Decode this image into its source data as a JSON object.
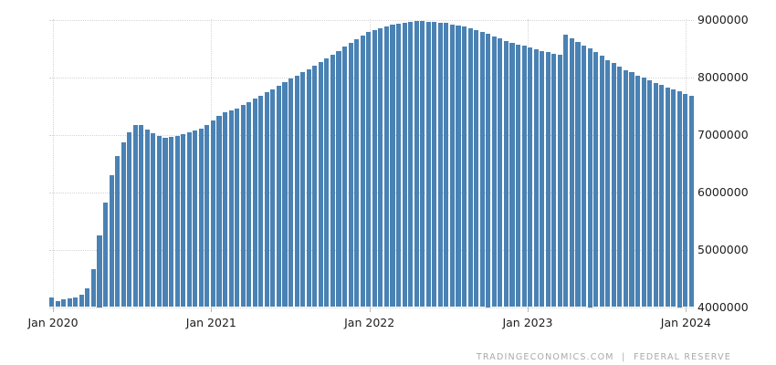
{
  "chart_data": {
    "type": "bar",
    "grid": true,
    "legend": "none",
    "bar_color": "#4a82b4",
    "ylim": [
      4000000,
      9000000
    ],
    "y_ticks": [
      4000000,
      5000000,
      6000000,
      7000000,
      8000000,
      9000000
    ],
    "y_tick_labels": [
      "4000000",
      "5000000",
      "6000000",
      "7000000",
      "8000000",
      "9000000"
    ],
    "x_tick_labels": [
      "Jan 2020",
      "Jan 2021",
      "Jan 2022",
      "Jan 2023",
      "Jan 2024"
    ],
    "values": [
      4170000,
      4110000,
      4140000,
      4150000,
      4160000,
      4220000,
      4320000,
      4660000,
      5250000,
      5810000,
      6290000,
      6630000,
      6860000,
      7040000,
      7160000,
      7170000,
      7090000,
      7020000,
      6970000,
      6940000,
      6960000,
      6980000,
      7010000,
      7040000,
      7070000,
      7100000,
      7160000,
      7240000,
      7330000,
      7390000,
      7420000,
      7460000,
      7510000,
      7570000,
      7620000,
      7680000,
      7740000,
      7790000,
      7850000,
      7910000,
      7970000,
      8030000,
      8080000,
      8140000,
      8200000,
      8260000,
      8330000,
      8390000,
      8460000,
      8530000,
      8600000,
      8660000,
      8720000,
      8780000,
      8820000,
      8850000,
      8880000,
      8910000,
      8930000,
      8950000,
      8960000,
      8970000,
      8970000,
      8960000,
      8960000,
      8950000,
      8940000,
      8920000,
      8900000,
      8880000,
      8850000,
      8820000,
      8790000,
      8750000,
      8710000,
      8670000,
      8630000,
      8600000,
      8570000,
      8540000,
      8510000,
      8480000,
      8450000,
      8430000,
      8410000,
      8390000,
      8740000,
      8680000,
      8610000,
      8550000,
      8500000,
      8440000,
      8370000,
      8300000,
      8240000,
      8180000,
      8120000,
      8080000,
      8030000,
      7990000,
      7950000,
      7900000,
      7860000,
      7820000,
      7780000,
      7750000,
      7710000,
      7680000
    ]
  },
  "footer": {
    "attribution": "TRADINGECONOMICS.COM  |  FEDERAL RESERVE"
  },
  "colors": {
    "grid": "#d4d4d4",
    "tick": "#b9b9b9",
    "axis_text": "#1d1d1d",
    "footer_text": "#a9a9a9"
  }
}
